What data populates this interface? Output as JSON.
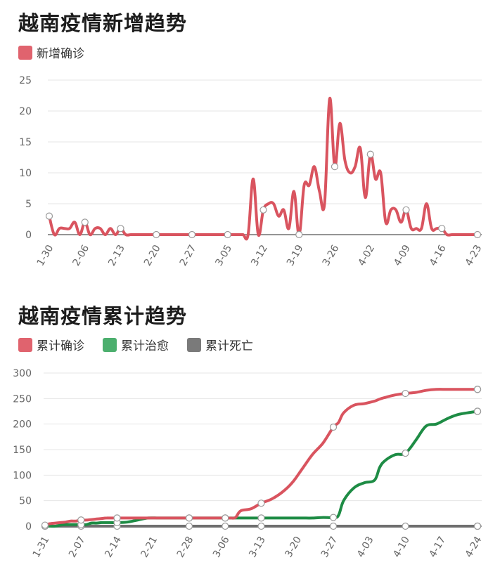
{
  "chart_data": [
    {
      "type": "line",
      "title": "越南疫情新增趋势",
      "legend": "top-left",
      "grid": true,
      "ylim": [
        0,
        25
      ],
      "yticks": [
        0,
        5,
        10,
        15,
        20,
        25
      ],
      "x_tick_labels": [
        "1-30",
        "2-06",
        "2-13",
        "2-20",
        "2-27",
        "3-05",
        "3-12",
        "3-19",
        "3-26",
        "4-02",
        "4-09",
        "4-16",
        "4-23"
      ],
      "series": [
        {
          "name": "新增确诊",
          "color": "#d9545f",
          "values": [
            3,
            0,
            1,
            1,
            1,
            2,
            0,
            2,
            0,
            1,
            1,
            0,
            1,
            0,
            1,
            0,
            0,
            0,
            0,
            0,
            0,
            0,
            0,
            0,
            0,
            0,
            0,
            0,
            0,
            0,
            0,
            0,
            0,
            0,
            0,
            0,
            0,
            0,
            0,
            0,
            9,
            0,
            4,
            5,
            5,
            3,
            4,
            1,
            7,
            0,
            8,
            8,
            11,
            7,
            5,
            22,
            11,
            18,
            12,
            10,
            11,
            14,
            6,
            13,
            9,
            10,
            2,
            4,
            4,
            2,
            4,
            1,
            1,
            1,
            5,
            1,
            1,
            1,
            0,
            0,
            0,
            0,
            0,
            0,
            0
          ],
          "markers": [
            0,
            7,
            14,
            21,
            28,
            35,
            42,
            49,
            56,
            63,
            70,
            77,
            84
          ]
        }
      ]
    },
    {
      "type": "line",
      "title": "越南疫情累计趋势",
      "legend": "top-left",
      "grid": true,
      "ylim": [
        0,
        300
      ],
      "yticks": [
        0,
        50,
        100,
        150,
        200,
        250,
        300
      ],
      "x_tick_labels": [
        "1-31",
        "2-07",
        "2-14",
        "2-21",
        "2-28",
        "3-06",
        "3-13",
        "3-20",
        "3-27",
        "4-03",
        "4-10",
        "4-17",
        "4-24"
      ],
      "x_points": [
        0,
        1,
        2,
        3,
        4,
        5,
        6,
        7,
        8,
        9,
        10,
        11,
        12,
        14,
        16,
        18,
        20,
        22,
        24,
        26,
        28,
        30,
        32,
        34,
        35,
        36,
        37,
        38,
        40,
        42,
        44,
        46,
        48,
        50,
        52,
        54,
        56,
        57,
        58,
        60,
        62,
        64,
        65,
        66,
        68,
        70,
        72,
        74,
        76,
        78,
        80,
        82,
        84
      ],
      "series": [
        {
          "name": "累计确诊",
          "color": "#d9545f",
          "values": [
            2,
            5,
            6,
            7,
            8,
            10,
            10,
            12,
            12,
            13,
            14,
            15,
            16,
            16,
            16,
            16,
            16,
            16,
            16,
            16,
            16,
            16,
            16,
            16,
            16,
            16,
            17,
            30,
            34,
            45,
            53,
            66,
            85,
            113,
            141,
            163,
            194,
            203,
            222,
            237,
            240,
            245,
            249,
            252,
            257,
            260,
            262,
            266,
            268,
            268,
            268,
            268,
            268
          ]
        },
        {
          "name": "累计治愈",
          "color": "#1e8c45",
          "values": [
            0,
            0,
            0,
            2,
            3,
            3,
            3,
            3,
            3,
            6,
            6,
            7,
            7,
            7,
            8,
            12,
            16,
            16,
            16,
            16,
            16,
            16,
            16,
            16,
            16,
            16,
            16,
            16,
            16,
            16,
            16,
            16,
            16,
            16,
            16,
            17,
            17,
            21,
            50,
            75,
            85,
            90,
            115,
            128,
            140,
            143,
            168,
            196,
            200,
            210,
            218,
            222,
            225
          ]
        },
        {
          "name": "累计死亡",
          "color": "#6e6e6e",
          "values": [
            0,
            0,
            0,
            0,
            0,
            0,
            0,
            0,
            0,
            0,
            0,
            0,
            0,
            0,
            0,
            0,
            0,
            0,
            0,
            0,
            0,
            0,
            0,
            0,
            0,
            0,
            0,
            0,
            0,
            0,
            0,
            0,
            0,
            0,
            0,
            0,
            0,
            0,
            0,
            0,
            0,
            0,
            0,
            0,
            0,
            0,
            0,
            0,
            0,
            0,
            0,
            0,
            0
          ]
        }
      ],
      "markers_x": [
        0,
        7,
        14,
        21,
        28,
        35,
        42,
        49,
        56,
        63,
        70,
        77,
        84
      ]
    }
  ]
}
